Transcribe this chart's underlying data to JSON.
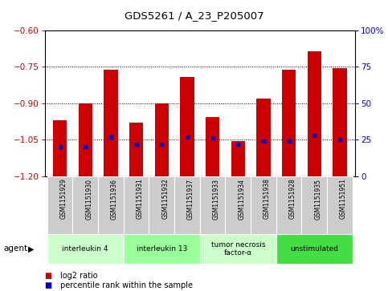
{
  "title": "GDS5261 / A_23_P205007",
  "samples": [
    "GSM1151929",
    "GSM1151930",
    "GSM1151936",
    "GSM1151931",
    "GSM1151932",
    "GSM1151937",
    "GSM1151933",
    "GSM1151934",
    "GSM1151938",
    "GSM1151928",
    "GSM1151935",
    "GSM1151951"
  ],
  "log2_ratios": [
    -0.97,
    -0.9,
    -0.76,
    -0.98,
    -0.9,
    -0.79,
    -0.955,
    -1.055,
    -0.88,
    -0.76,
    -0.685,
    -0.755
  ],
  "percentile_ranks": [
    20,
    20,
    27,
    22,
    22,
    27,
    26,
    22,
    24,
    24,
    28,
    25
  ],
  "ylim_left": [
    -1.2,
    -0.6
  ],
  "yticks_left": [
    -1.2,
    -1.05,
    -0.9,
    -0.75,
    -0.6
  ],
  "yticks_right": [
    0,
    25,
    50,
    75,
    100
  ],
  "bar_color": "#cc0000",
  "percentile_color": "#0000cc",
  "agent_groups": [
    {
      "label": "interleukin 4",
      "start": 0,
      "end": 3,
      "color": "#ccffcc"
    },
    {
      "label": "interleukin 13",
      "start": 3,
      "end": 6,
      "color": "#99ff99"
    },
    {
      "label": "tumor necrosis\nfactor-α",
      "start": 6,
      "end": 9,
      "color": "#ccffcc"
    },
    {
      "label": "unstimulated",
      "start": 9,
      "end": 12,
      "color": "#44dd44"
    }
  ],
  "legend_log2": "log2 ratio",
  "legend_pct": "percentile rank within the sample",
  "bg_color": "#ffffff",
  "sample_box_color": "#cccccc"
}
